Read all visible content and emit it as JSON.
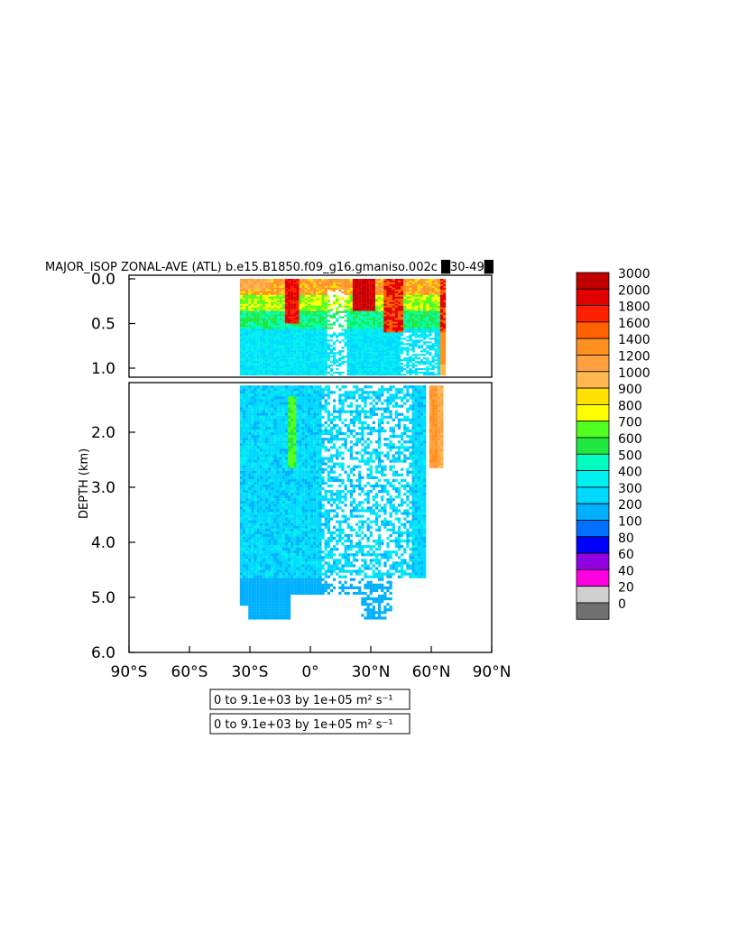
{
  "title": "MAJOR_ISOP ZONAL-AVE (ATL) b.e15.B1850.f09_g16.gmaniso.002c █30-49█",
  "ylabel": "DEPTH (km)",
  "chart_data": {
    "type": "heatmap",
    "title": "MAJOR_ISOP ZONAL-AVE (ATL) b.e15.B1850.f09_g16.gmaniso.002c █30-49█",
    "ylabel": "DEPTH (km)",
    "xlim": [
      -90,
      90
    ],
    "ylim": [
      6.0,
      0.0
    ],
    "x_ticks": [
      {
        "value": -90,
        "label": "90°S"
      },
      {
        "value": -60,
        "label": "60°S"
      },
      {
        "value": -30,
        "label": "30°S"
      },
      {
        "value": 0,
        "label": "0°"
      },
      {
        "value": 30,
        "label": "30°N"
      },
      {
        "value": 60,
        "label": "60°N"
      },
      {
        "value": 90,
        "label": "90°N"
      }
    ],
    "upper_panel": {
      "depth_range": [
        0.0,
        1.1
      ],
      "y_ticks": [
        {
          "value": 0.0,
          "label": "0.0"
        },
        {
          "value": 0.5,
          "label": "0.5"
        },
        {
          "value": 1.0,
          "label": "1.0"
        }
      ]
    },
    "lower_panel": {
      "depth_range": [
        1.1,
        6.0
      ],
      "y_ticks": [
        {
          "value": 2.0,
          "label": "2.0"
        },
        {
          "value": 3.0,
          "label": "3.0"
        },
        {
          "value": 4.0,
          "label": "4.0"
        },
        {
          "value": 5.0,
          "label": "5.0"
        },
        {
          "value": 6.0,
          "label": "6.0"
        }
      ]
    },
    "colorbar": {
      "levels": [
        "3000",
        "2000",
        "1800",
        "1600",
        "1400",
        "1200",
        "1000",
        "900",
        "800",
        "700",
        "600",
        "500",
        "400",
        "300",
        "200",
        "100",
        "80",
        "60",
        "40",
        "20",
        "0"
      ],
      "colors": [
        "#c00000",
        "#e00000",
        "#ff2000",
        "#ff6000",
        "#ff9020",
        "#ffa040",
        "#ffb850",
        "#ffe000",
        "#ffff00",
        "#50ff20",
        "#20e840",
        "#00ffc0",
        "#00f0f0",
        "#00d8ff",
        "#00b0ff",
        "#0070ff",
        "#0000ff",
        "#9000e0",
        "#ff00e0",
        "#d0d0d0",
        "#707070"
      ]
    },
    "regions": [
      {
        "lat_range": [
          -35,
          62
        ],
        "depth_range": [
          0.0,
          1.1
        ],
        "dominant": "mixed 200-3000, highest near surface"
      },
      {
        "lat_range": [
          -35,
          55
        ],
        "depth_range": [
          1.1,
          5.4
        ],
        "dominant": "200-400"
      },
      {
        "lat_range": [
          60,
          65
        ],
        "depth_range": [
          1.1,
          2.6
        ],
        "dominant": "1000-1400"
      }
    ],
    "info_boxes": [
      "0 to 9.1e+03 by 1e+05 m² s⁻¹",
      "0 to 9.1e+03 by 1e+05 m² s⁻¹"
    ]
  }
}
